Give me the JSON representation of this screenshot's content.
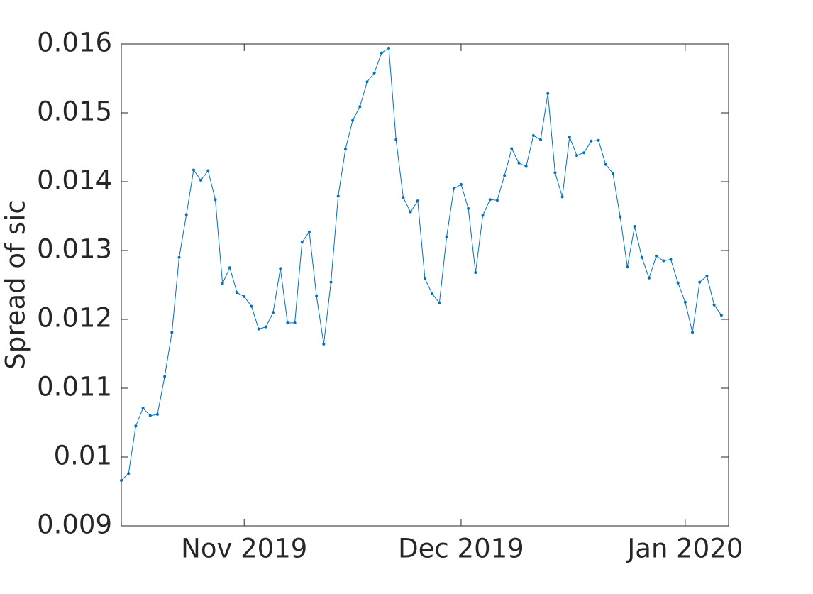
{
  "chart_data": {
    "type": "line",
    "ylabel": "Spread of sic",
    "values": [
      0.00966,
      0.00976,
      0.01045,
      0.01071,
      0.0106,
      0.01062,
      0.01117,
      0.01181,
      0.0129,
      0.01352,
      0.01417,
      0.01402,
      0.01416,
      0.01374,
      0.01252,
      0.01275,
      0.01239,
      0.01233,
      0.01219,
      0.01186,
      0.01189,
      0.0121,
      0.01274,
      0.01195,
      0.01195,
      0.01312,
      0.01327,
      0.01234,
      0.01164,
      0.01254,
      0.01379,
      0.01447,
      0.01489,
      0.01509,
      0.01545,
      0.01558,
      0.01587,
      0.01594,
      0.01461,
      0.01377,
      0.01356,
      0.01372,
      0.01259,
      0.01237,
      0.01224,
      0.0132,
      0.0139,
      0.01396,
      0.01361,
      0.01268,
      0.01351,
      0.01374,
      0.01373,
      0.01409,
      0.01448,
      0.01427,
      0.01422,
      0.01467,
      0.01461,
      0.01528,
      0.01413,
      0.01378,
      0.01465,
      0.01438,
      0.01442,
      0.01459,
      0.0146,
      0.01425,
      0.01412,
      0.01349,
      0.01276,
      0.01335,
      0.0129,
      0.0126,
      0.01292,
      0.01285,
      0.01287,
      0.01253,
      0.01225,
      0.01181,
      0.01254,
      0.01263,
      0.01221,
      0.01206
    ],
    "color": "#0072bd",
    "xlim": [
      0,
      84
    ],
    "xticks": [
      {
        "value": 17,
        "label": "Nov 2019"
      },
      {
        "value": 47,
        "label": "Dec 2019"
      },
      {
        "value": 78,
        "label": "Jan 2020"
      }
    ],
    "ylim": [
      0.009,
      0.016
    ],
    "yticks": [
      0.009,
      0.01,
      0.011,
      0.012,
      0.013,
      0.014,
      0.015,
      0.016
    ]
  }
}
